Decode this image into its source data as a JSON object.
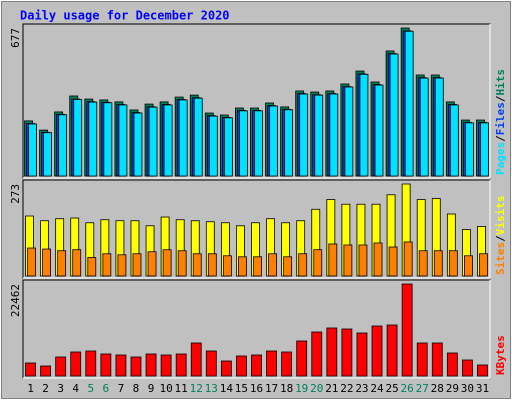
{
  "chart_data": [
    {
      "type": "bar",
      "title": "Daily usage for December 2020",
      "ylim": [
        0,
        677
      ],
      "yticks": [
        677
      ],
      "legend_separator": "/",
      "series": [
        {
          "name": "Hits",
          "color": "#00805c",
          "values": [
            252,
            210,
            293,
            366,
            352,
            348,
            339,
            302,
            329,
            339,
            361,
            370,
            288,
            279,
            311,
            311,
            334,
            316,
            389,
            384,
            389,
            421,
            480,
            430,
            572,
            677,
            462,
            462,
            339,
            256,
            256
          ]
        },
        {
          "name": "Files",
          "color": "#0040ff",
          "values": [
            240,
            200,
            282,
            352,
            340,
            337,
            327,
            290,
            317,
            327,
            350,
            358,
            276,
            268,
            300,
            300,
            322,
            305,
            377,
            372,
            377,
            409,
            467,
            418,
            560,
            664,
            450,
            450,
            327,
            245,
            245
          ]
        },
        {
          "name": "Pages",
          "color": "#00e0ff",
          "values": [
            238,
            198,
            280,
            350,
            338,
            335,
            325,
            288,
            315,
            325,
            348,
            356,
            274,
            266,
            298,
            298,
            320,
            303,
            375,
            370,
            375,
            407,
            465,
            416,
            558,
            662,
            448,
            448,
            325,
            243,
            243
          ]
        }
      ]
    },
    {
      "type": "bar",
      "ylim": [
        0,
        273
      ],
      "yticks": [
        273
      ],
      "legend_separator": "/",
      "series": [
        {
          "name": "Visits",
          "color": "#ffff00",
          "values": [
            178,
            164,
            170,
            172,
            158,
            167,
            164,
            164,
            149,
            175,
            167,
            164,
            161,
            158,
            149,
            158,
            170,
            158,
            164,
            198,
            227,
            213,
            213,
            213,
            241,
            273,
            227,
            230,
            184,
            138,
            147
          ]
        },
        {
          "name": "Sites",
          "color": "#ff8000",
          "values": [
            83,
            80,
            75,
            78,
            55,
            66,
            63,
            66,
            72,
            78,
            75,
            66,
            66,
            60,
            57,
            57,
            66,
            57,
            66,
            78,
            95,
            92,
            92,
            98,
            86,
            101,
            75,
            75,
            75,
            60,
            66
          ]
        }
      ]
    },
    {
      "type": "bar",
      "ylim": [
        0,
        22462
      ],
      "yticks": [
        22462
      ],
      "categories": [
        "1",
        "2",
        "3",
        "4",
        "5",
        "6",
        "7",
        "8",
        "9",
        "10",
        "11",
        "12",
        "13",
        "14",
        "15",
        "16",
        "17",
        "18",
        "19",
        "20",
        "21",
        "22",
        "23",
        "24",
        "25",
        "26",
        "27",
        "28",
        "29",
        "30",
        "31"
      ],
      "category_colors": [
        "#000000",
        "#000000",
        "#000000",
        "#000000",
        "#00805c",
        "#00805c",
        "#000000",
        "#000000",
        "#000000",
        "#000000",
        "#000000",
        "#00805c",
        "#00805c",
        "#000000",
        "#000000",
        "#000000",
        "#000000",
        "#000000",
        "#00805c",
        "#00805c",
        "#000000",
        "#000000",
        "#000000",
        "#000000",
        "#000000",
        "#00805c",
        "#00805c",
        "#000000",
        "#000000",
        "#000000",
        "#000000"
      ],
      "series": [
        {
          "name": "KBytes",
          "color": "#ff0000",
          "values": [
            3174,
            2442,
            4639,
            5860,
            6104,
            5372,
            5128,
            4639,
            5372,
            5128,
            5372,
            8057,
            6104,
            3662,
            4883,
            5128,
            6104,
            5860,
            8546,
            10743,
            11720,
            11476,
            10499,
            12208,
            12452,
            22462,
            8057,
            8057,
            5616,
            3906,
            2686
          ]
        }
      ]
    }
  ]
}
